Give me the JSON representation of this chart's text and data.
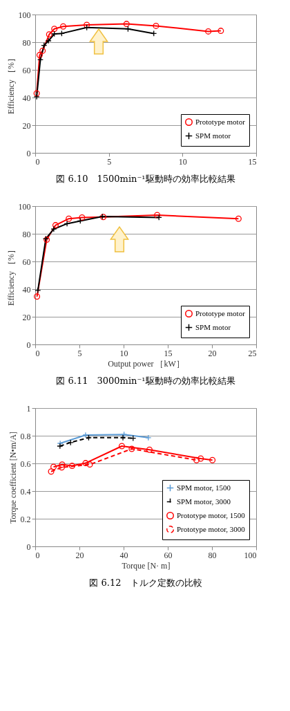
{
  "chart_data": [
    {
      "type": "line",
      "title": "図 6.10　1500min⁻¹駆動時の効率比較結果",
      "ylabel": "Efficiency ［%］",
      "xlim": [
        0,
        15
      ],
      "ylim": [
        0,
        100
      ],
      "xticks": [
        0,
        5,
        10,
        15
      ],
      "yticks": [
        0,
        20,
        40,
        60,
        80,
        100
      ],
      "grid": "y",
      "legend": "bottom right",
      "series": [
        {
          "name": "Prototype motor",
          "color": "#ff0000",
          "marker": "circle",
          "line_style": "solid",
          "x": [
            0.1,
            0.3,
            0.5,
            0.95,
            1.3,
            1.9,
            3.5,
            6.2,
            8.2,
            11.75,
            12.6
          ],
          "values": [
            43,
            70.7,
            73.8,
            85.6,
            89.6,
            91.4,
            92.5,
            93.2,
            91.8,
            87.8,
            88.2
          ]
        },
        {
          "name": "SPM motor",
          "color": "#000000",
          "marker": "cross",
          "line_style": "solid",
          "x": [
            0.1,
            0.35,
            0.6,
            0.9,
            1.3,
            1.8,
            3.5,
            6.3,
            8.05
          ],
          "values": [
            40.6,
            67.3,
            77.7,
            81,
            86,
            86.3,
            90.6,
            89.6,
            86.3
          ]
        }
      ]
    },
    {
      "type": "line",
      "title": "図 6.11　3000min⁻¹駆動時の効率比較結果",
      "xlabel": "Output power ［kW］",
      "ylabel": "Efficiency ［%］",
      "xlim": [
        0,
        25
      ],
      "ylim": [
        0,
        100
      ],
      "xticks": [
        0,
        5,
        10,
        15,
        20,
        25
      ],
      "yticks": [
        0,
        20,
        40,
        60,
        80,
        100
      ],
      "grid": "y",
      "legend": "bottom right",
      "series": [
        {
          "name": "Prototype motor",
          "color": "#ff0000",
          "marker": "circle",
          "line_style": "solid",
          "x": [
            0.2,
            1.3,
            2.3,
            3.8,
            5.3,
            7.7,
            13.8,
            23.0
          ],
          "values": [
            34.6,
            75.7,
            86.2,
            90.9,
            91.8,
            92.1,
            93.5,
            90.9
          ]
        },
        {
          "name": "SPM motor",
          "color": "#000000",
          "marker": "cross",
          "line_style": "solid",
          "x": [
            0.3,
            1.2,
            2.1,
            3.6,
            5.1,
            7.6,
            14.0
          ],
          "values": [
            39.1,
            76.4,
            83.4,
            87.3,
            89.3,
            92.5,
            91.8
          ]
        }
      ]
    },
    {
      "type": "line",
      "title": "図 6.12　トルク定数の比較",
      "xlabel": "Torque [N· m]",
      "ylabel": "Torque coefficient [N•m/A]",
      "xlim": [
        0,
        100
      ],
      "ylim": [
        0,
        1
      ],
      "xticks": [
        0,
        20,
        40,
        60,
        80,
        100
      ],
      "yticks": [
        0,
        0.2,
        0.4,
        0.6,
        0.8,
        1
      ],
      "grid": "y",
      "legend": "bottom right",
      "series": [
        {
          "name": "SPM motor, 1500",
          "color": "#5b9bd5",
          "marker": "cross",
          "line_style": "solid",
          "x": [
            11.3,
            22.8,
            40.2,
            51.2
          ],
          "values": [
            0.745,
            0.805,
            0.809,
            0.786
          ]
        },
        {
          "name": "SPM motor, 3000",
          "color": "#000000",
          "marker": "cross",
          "line_style": "dashed",
          "x": [
            11.2,
            16,
            24.2,
            39.7,
            44.3
          ],
          "values": [
            0.725,
            0.751,
            0.786,
            0.786,
            0.782
          ]
        },
        {
          "name": "Prototype motor, 1500",
          "color": "#ff0000",
          "marker": "circle",
          "line_style": "solid",
          "x": [
            8.3,
            12.2,
            16.7,
            22.8,
            39.2,
            51.7,
            74.9,
            80.2
          ],
          "values": [
            0.575,
            0.591,
            0.582,
            0.602,
            0.725,
            0.699,
            0.635,
            0.624
          ]
        },
        {
          "name": "Prototype motor, 3000",
          "color": "#ff0000",
          "marker": "circle",
          "line_style": "dashed",
          "x": [
            7.2,
            12.0,
            24.7,
            43.7,
            73.0
          ],
          "values": [
            0.541,
            0.571,
            0.592,
            0.705,
            0.624
          ]
        }
      ]
    }
  ]
}
